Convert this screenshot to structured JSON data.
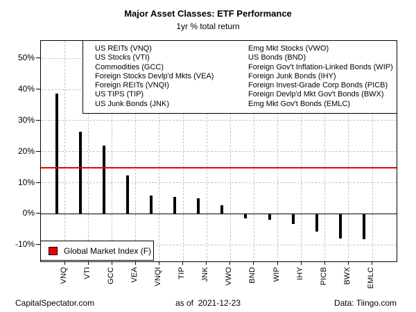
{
  "chart_data": {
    "type": "bar",
    "title": "Major Asset Classes: ETF Performance",
    "subtitle": "1yr % total return",
    "categories": [
      "VNQ",
      "VTI",
      "GCC",
      "VEA",
      "VNQI",
      "TIP",
      "JNK",
      "VWO",
      "BND",
      "WIP",
      "IHY",
      "PICB",
      "BWX",
      "EMLC"
    ],
    "values": [
      38.7,
      26.3,
      22.0,
      12.4,
      5.9,
      5.4,
      5.0,
      2.7,
      -1.6,
      -2.0,
      -3.2,
      -5.7,
      -8.0,
      -8.3
    ],
    "xlabel": "",
    "ylabel": "",
    "yticks": [
      50,
      40,
      30,
      20,
      10,
      0,
      -10
    ],
    "ytick_suffix": "%",
    "ylim": [
      -15.3,
      55.7
    ],
    "grid": "dashed gray, both axes",
    "legend_position": "top inside box",
    "bar_color": "#1E90FF",
    "bar_border_color": "#000000",
    "reference_line": {
      "value": 14.7,
      "color": "#ee0000",
      "label": "Global Market Index (F)"
    }
  },
  "legend_top": {
    "left_column": [
      "US REITs (VNQ)",
      "US Stocks (VTI)",
      "Commodities (GCC)",
      "Foreign Stocks Devlp'd Mkts (VEA)",
      "Foreign REITs (VNQI)",
      "US TIPS (TIP)",
      "US Junk Bonds (JNK)"
    ],
    "right_column": [
      "Emg Mkt Stocks (VWO)",
      "US Bonds (BND)",
      "Foreign Gov't Inflation-Linked Bonds (WIP)",
      "Foreign Junk Bonds (IHY)",
      "Foreign Invest-Grade Corp Bonds (PICB)",
      "Foreign Devlp'd Mkt Gov't Bonds (BWX)",
      "Emg Mkt Gov't Bonds (EMLC)"
    ]
  },
  "legend_bottom": {
    "label": "Global Market Index (F)",
    "marker_color": "#ee0000"
  },
  "footer": {
    "left": "CapitalSpectator.com",
    "center": "as of  2021-12-23",
    "right": "Data: Tiingo.com"
  }
}
